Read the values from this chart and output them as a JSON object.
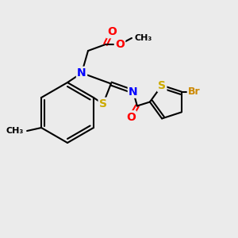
{
  "background_color": "#ebebeb",
  "bond_color": "#000000",
  "atom_colors": {
    "N": "#0000ff",
    "S": "#ccaa00",
    "O": "#ff0000",
    "Br": "#cc8800",
    "C": "#000000",
    "CH3": "#000000"
  },
  "font_size_atom": 9,
  "font_size_label": 8,
  "title": "",
  "figsize": [
    3.0,
    3.0
  ],
  "dpi": 100
}
